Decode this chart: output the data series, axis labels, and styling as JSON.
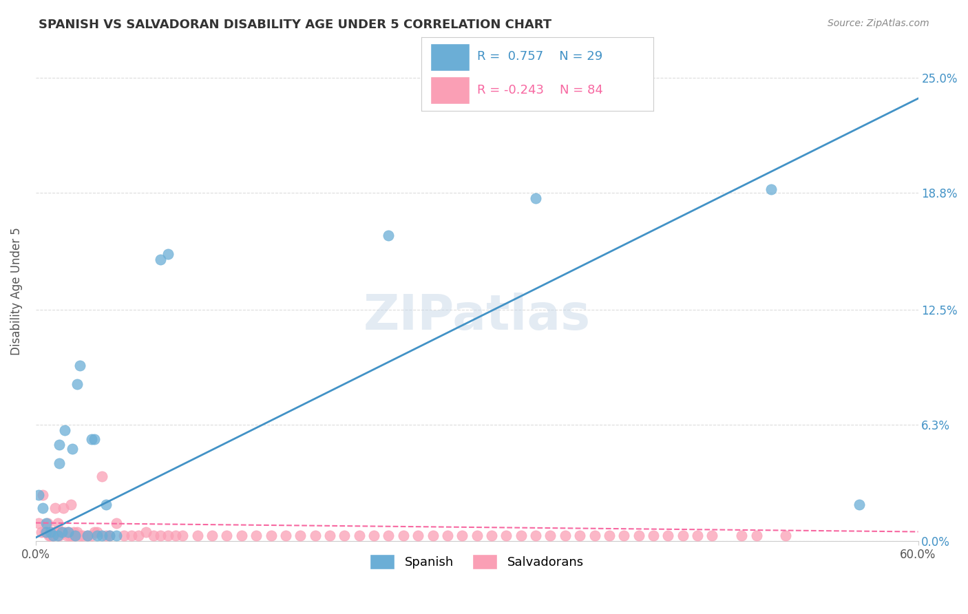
{
  "title": "SPANISH VS SALVADORAN DISABILITY AGE UNDER 5 CORRELATION CHART",
  "source": "Source: ZipAtlas.com",
  "ylabel": "Disability Age Under 5",
  "xlabel": "",
  "watermark": "ZIPatlas",
  "xlim": [
    0.0,
    0.6
  ],
  "ylim": [
    0.0,
    0.27
  ],
  "xticks": [
    0.0,
    0.1,
    0.2,
    0.3,
    0.4,
    0.5,
    0.6
  ],
  "xticklabels": [
    "0.0%",
    "",
    "",
    "",
    "",
    "",
    "60.0%"
  ],
  "ytick_labels": [
    "0.0%",
    "6.3%",
    "12.5%",
    "18.8%",
    "25.0%"
  ],
  "ytick_values": [
    0.0,
    0.063,
    0.125,
    0.188,
    0.25
  ],
  "legend_blue_r": "0.757",
  "legend_blue_n": "29",
  "legend_pink_r": "-0.243",
  "legend_pink_n": "84",
  "blue_color": "#6baed6",
  "pink_color": "#fa9fb5",
  "blue_line_color": "#4292c6",
  "pink_line_color": "#f768a1",
  "background_color": "#ffffff",
  "grid_color": "#cccccc",
  "title_color": "#333333",
  "source_color": "#888888",
  "spanish_points_x": [
    0.002,
    0.005,
    0.007,
    0.007,
    0.01,
    0.012,
    0.015,
    0.016,
    0.016,
    0.018,
    0.02,
    0.022,
    0.025,
    0.027,
    0.028,
    0.03,
    0.035,
    0.038,
    0.04,
    0.042,
    0.045,
    0.048,
    0.05,
    0.055,
    0.085,
    0.09,
    0.24,
    0.34,
    0.5,
    0.56
  ],
  "spanish_points_y": [
    0.025,
    0.018,
    0.01,
    0.005,
    0.005,
    0.003,
    0.003,
    0.052,
    0.042,
    0.005,
    0.06,
    0.005,
    0.05,
    0.003,
    0.085,
    0.095,
    0.003,
    0.055,
    0.055,
    0.003,
    0.003,
    0.02,
    0.003,
    0.003,
    0.152,
    0.155,
    0.165,
    0.185,
    0.19,
    0.02
  ],
  "salvadoran_points_x": [
    0.002,
    0.004,
    0.005,
    0.006,
    0.007,
    0.008,
    0.009,
    0.01,
    0.011,
    0.012,
    0.013,
    0.014,
    0.015,
    0.016,
    0.017,
    0.018,
    0.019,
    0.02,
    0.021,
    0.022,
    0.023,
    0.024,
    0.025,
    0.026,
    0.027,
    0.028,
    0.03,
    0.032,
    0.035,
    0.038,
    0.04,
    0.042,
    0.045,
    0.048,
    0.05,
    0.055,
    0.06,
    0.065,
    0.07,
    0.075,
    0.08,
    0.085,
    0.09,
    0.095,
    0.1,
    0.11,
    0.12,
    0.13,
    0.14,
    0.15,
    0.16,
    0.17,
    0.18,
    0.19,
    0.2,
    0.21,
    0.22,
    0.23,
    0.24,
    0.25,
    0.26,
    0.27,
    0.28,
    0.29,
    0.3,
    0.31,
    0.32,
    0.33,
    0.34,
    0.35,
    0.36,
    0.37,
    0.38,
    0.39,
    0.4,
    0.41,
    0.42,
    0.43,
    0.44,
    0.45,
    0.46,
    0.48,
    0.49,
    0.51
  ],
  "salvadoran_points_y": [
    0.01,
    0.005,
    0.025,
    0.005,
    0.005,
    0.01,
    0.003,
    0.003,
    0.005,
    0.003,
    0.018,
    0.005,
    0.01,
    0.003,
    0.005,
    0.005,
    0.018,
    0.005,
    0.003,
    0.005,
    0.003,
    0.02,
    0.003,
    0.005,
    0.003,
    0.005,
    0.003,
    0.003,
    0.003,
    0.003,
    0.005,
    0.005,
    0.035,
    0.003,
    0.003,
    0.01,
    0.003,
    0.003,
    0.003,
    0.005,
    0.003,
    0.003,
    0.003,
    0.003,
    0.003,
    0.003,
    0.003,
    0.003,
    0.003,
    0.003,
    0.003,
    0.003,
    0.003,
    0.003,
    0.003,
    0.003,
    0.003,
    0.003,
    0.003,
    0.003,
    0.003,
    0.003,
    0.003,
    0.003,
    0.003,
    0.003,
    0.003,
    0.003,
    0.003,
    0.003,
    0.003,
    0.003,
    0.003,
    0.003,
    0.003,
    0.003,
    0.003,
    0.003,
    0.003,
    0.003,
    0.003,
    0.003,
    0.003,
    0.003
  ],
  "blue_trendline_x": [
    0.0,
    0.6
  ],
  "blue_trendline_slope": 0.395,
  "blue_trendline_intercept": 0.002,
  "pink_trendline_x": [
    0.0,
    0.6
  ],
  "pink_trendline_slope": -0.008,
  "pink_trendline_intercept": 0.01
}
